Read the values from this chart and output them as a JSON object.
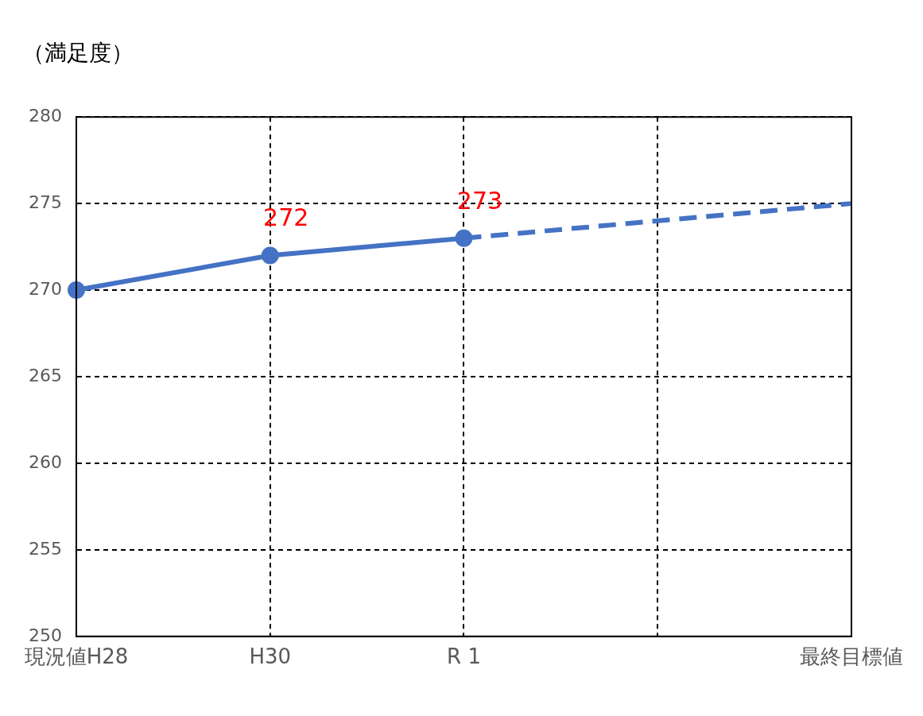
{
  "chart_data": {
    "type": "line",
    "ylabel": "（満足度）",
    "categories": [
      "現況値H28",
      "H30",
      "R 1",
      null,
      "最終目標値"
    ],
    "series": [
      {
        "color": "#4472c4",
        "values": [
          270,
          272,
          273,
          null,
          null
        ],
        "marker": "circle",
        "line_style": "solid",
        "value_labels": [
          null,
          "272",
          "273",
          null,
          null
        ]
      },
      {
        "color": "#4472c4",
        "values": [
          null,
          null,
          273,
          null,
          275
        ],
        "line_style": "dashed"
      }
    ],
    "ylim": [
      250,
      280
    ],
    "yticks": [
      250,
      255,
      260,
      265,
      270,
      275,
      280
    ],
    "grid": true,
    "legend": false
  }
}
